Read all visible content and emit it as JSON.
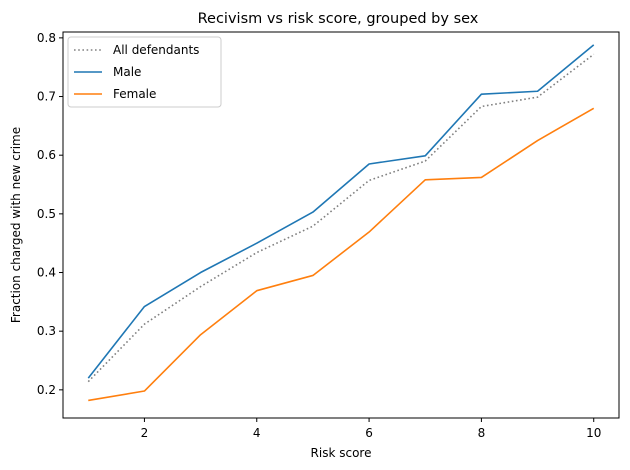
{
  "chart_data": {
    "type": "line",
    "title": "Recivism vs risk score, grouped by sex",
    "xlabel": "Risk score",
    "ylabel": "Fraction charged with new crime",
    "xlim": [
      0.55,
      10.45
    ],
    "ylim": [
      0.152,
      0.81
    ],
    "xticks": [
      2,
      4,
      6,
      8,
      10
    ],
    "yticks": [
      0.2,
      0.3,
      0.4,
      0.5,
      0.6,
      0.7,
      0.8
    ],
    "grid": false,
    "legend_position": "top-left",
    "x": [
      1,
      2,
      3,
      4,
      5,
      6,
      7,
      8,
      9,
      10
    ],
    "series": [
      {
        "name": "All defendants",
        "style": "dotted",
        "color": "#808080",
        "values": [
          0.214,
          0.312,
          0.376,
          0.434,
          0.479,
          0.557,
          0.59,
          0.683,
          0.699,
          0.772
        ]
      },
      {
        "name": "Male",
        "style": "solid",
        "color": "#1f77b4",
        "values": [
          0.22,
          0.342,
          0.4,
          0.45,
          0.503,
          0.585,
          0.599,
          0.704,
          0.709,
          0.788
        ]
      },
      {
        "name": "Female",
        "style": "solid",
        "color": "#ff7f0e",
        "values": [
          0.182,
          0.198,
          0.294,
          0.369,
          0.395,
          0.469,
          0.558,
          0.562,
          0.625,
          0.68
        ]
      }
    ]
  }
}
